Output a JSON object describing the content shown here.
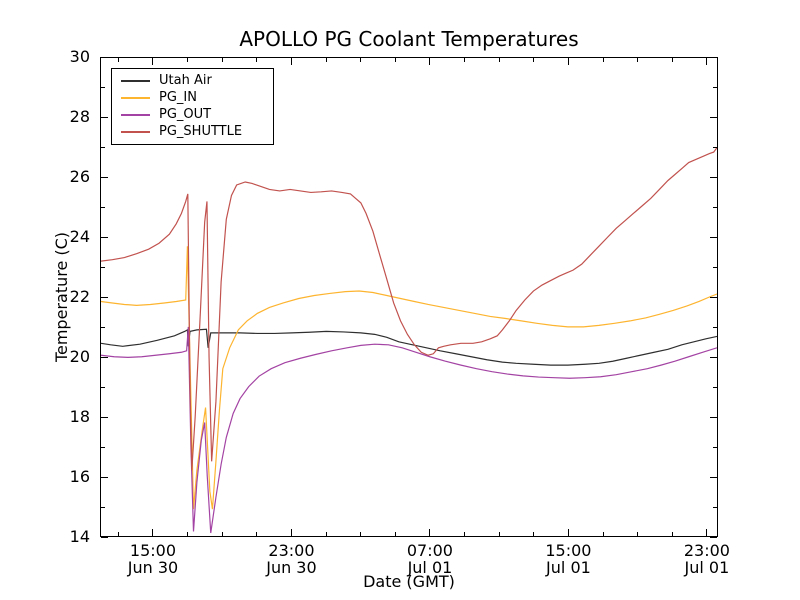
{
  "chart_data": {
    "type": "line",
    "title": "APOLLO PG Coolant Temperatures",
    "xlabel": "Date (GMT)",
    "ylabel": "Temperature (C)",
    "x_unit": "hours since Jun 30 00:00 GMT",
    "xlim": [
      11.94,
      47.64
    ],
    "ylim": [
      14,
      30
    ],
    "grid": false,
    "legend_position": "upper left",
    "y_major_ticks": [
      14,
      16,
      18,
      20,
      22,
      24,
      26,
      28,
      30
    ],
    "y_minor_tick_values": [
      15,
      17,
      19,
      21,
      23,
      25,
      27,
      29
    ],
    "x_major_ticks": [
      {
        "value": 15,
        "time": "15:00",
        "date": "Jun 30"
      },
      {
        "value": 23,
        "time": "23:00",
        "date": "Jun 30"
      },
      {
        "value": 31,
        "time": "07:00",
        "date": "Jul 01"
      },
      {
        "value": 39,
        "time": "15:00",
        "date": "Jul 01"
      },
      {
        "value": 47,
        "time": "23:00",
        "date": "Jul 01"
      }
    ],
    "x_minor_tick_values": [
      13,
      17,
      19,
      21,
      25,
      27,
      29,
      33,
      35,
      37,
      41,
      43,
      45
    ],
    "series": [
      {
        "name": "Utah Air",
        "color": "#2f2f2f",
        "points": [
          [
            11.94,
            20.45
          ],
          [
            12.5,
            20.4
          ],
          [
            13.2,
            20.35
          ],
          [
            14.2,
            20.42
          ],
          [
            15.2,
            20.55
          ],
          [
            16.2,
            20.7
          ],
          [
            16.8,
            20.85
          ],
          [
            16.95,
            20.9
          ],
          [
            17.0,
            20.35
          ],
          [
            17.1,
            20.85
          ],
          [
            17.5,
            20.9
          ],
          [
            18.05,
            20.92
          ],
          [
            18.15,
            20.3
          ],
          [
            18.3,
            20.8
          ],
          [
            19,
            20.8
          ],
          [
            20,
            20.8
          ],
          [
            21,
            20.78
          ],
          [
            22,
            20.78
          ],
          [
            23,
            20.8
          ],
          [
            24,
            20.82
          ],
          [
            25,
            20.85
          ],
          [
            26,
            20.83
          ],
          [
            27,
            20.8
          ],
          [
            27.8,
            20.75
          ],
          [
            28.5,
            20.65
          ],
          [
            29.2,
            20.5
          ],
          [
            30,
            20.4
          ],
          [
            30.8,
            20.3
          ],
          [
            31.6,
            20.2
          ],
          [
            32.5,
            20.1
          ],
          [
            33.4,
            20.0
          ],
          [
            34.3,
            19.9
          ],
          [
            35.2,
            19.82
          ],
          [
            36,
            19.78
          ],
          [
            37,
            19.75
          ],
          [
            38,
            19.72
          ],
          [
            39,
            19.72
          ],
          [
            40,
            19.75
          ],
          [
            40.8,
            19.78
          ],
          [
            41.6,
            19.85
          ],
          [
            42.4,
            19.95
          ],
          [
            43.2,
            20.05
          ],
          [
            44,
            20.15
          ],
          [
            44.8,
            20.25
          ],
          [
            45.6,
            20.4
          ],
          [
            46.3,
            20.5
          ],
          [
            47,
            20.6
          ],
          [
            47.64,
            20.68
          ]
        ]
      },
      {
        "name": "PG_IN",
        "color": "#fdb42f",
        "points": [
          [
            11.94,
            21.85
          ],
          [
            12.6,
            21.8
          ],
          [
            13.3,
            21.75
          ],
          [
            14.0,
            21.72
          ],
          [
            14.8,
            21.75
          ],
          [
            15.6,
            21.8
          ],
          [
            16.3,
            21.85
          ],
          [
            16.85,
            21.9
          ],
          [
            16.95,
            23.7
          ],
          [
            17.05,
            21.0
          ],
          [
            17.3,
            14.9
          ],
          [
            17.5,
            16.2
          ],
          [
            17.8,
            17.5
          ],
          [
            18.0,
            18.3
          ],
          [
            18.25,
            15.5
          ],
          [
            18.4,
            14.9
          ],
          [
            18.6,
            16.5
          ],
          [
            18.8,
            18.2
          ],
          [
            19.0,
            19.6
          ],
          [
            19.4,
            20.3
          ],
          [
            19.9,
            20.9
          ],
          [
            20.4,
            21.2
          ],
          [
            21.0,
            21.45
          ],
          [
            21.7,
            21.65
          ],
          [
            22.5,
            21.8
          ],
          [
            23.4,
            21.95
          ],
          [
            24.3,
            22.05
          ],
          [
            25.2,
            22.12
          ],
          [
            26.1,
            22.18
          ],
          [
            26.9,
            22.2
          ],
          [
            27.7,
            22.15
          ],
          [
            28.5,
            22.05
          ],
          [
            29.3,
            21.95
          ],
          [
            30.1,
            21.85
          ],
          [
            30.9,
            21.75
          ],
          [
            31.8,
            21.65
          ],
          [
            32.7,
            21.55
          ],
          [
            33.6,
            21.45
          ],
          [
            34.5,
            21.35
          ],
          [
            35.4,
            21.28
          ],
          [
            36.3,
            21.2
          ],
          [
            37.2,
            21.12
          ],
          [
            38.1,
            21.05
          ],
          [
            39.0,
            21.0
          ],
          [
            39.9,
            21.0
          ],
          [
            40.8,
            21.05
          ],
          [
            41.7,
            21.12
          ],
          [
            42.6,
            21.2
          ],
          [
            43.5,
            21.3
          ],
          [
            44.3,
            21.42
          ],
          [
            45.1,
            21.55
          ],
          [
            45.9,
            21.7
          ],
          [
            46.6,
            21.85
          ],
          [
            47.2,
            22.0
          ],
          [
            47.64,
            22.1
          ]
        ]
      },
      {
        "name": "PG_OUT",
        "color": "#a343a3",
        "points": [
          [
            11.94,
            20.05
          ],
          [
            12.7,
            20.0
          ],
          [
            13.5,
            19.98
          ],
          [
            14.3,
            20.0
          ],
          [
            15.1,
            20.05
          ],
          [
            15.9,
            20.1
          ],
          [
            16.6,
            20.15
          ],
          [
            16.9,
            20.2
          ],
          [
            17.0,
            21.0
          ],
          [
            17.15,
            17.0
          ],
          [
            17.3,
            14.15
          ],
          [
            17.5,
            15.8
          ],
          [
            17.75,
            17.2
          ],
          [
            17.95,
            17.8
          ],
          [
            18.1,
            16.0
          ],
          [
            18.3,
            14.1
          ],
          [
            18.6,
            15.3
          ],
          [
            18.9,
            16.4
          ],
          [
            19.2,
            17.3
          ],
          [
            19.6,
            18.1
          ],
          [
            20.0,
            18.6
          ],
          [
            20.5,
            19.0
          ],
          [
            21.1,
            19.35
          ],
          [
            21.8,
            19.6
          ],
          [
            22.6,
            19.8
          ],
          [
            23.5,
            19.95
          ],
          [
            24.4,
            20.08
          ],
          [
            25.3,
            20.2
          ],
          [
            26.2,
            20.3
          ],
          [
            27.0,
            20.38
          ],
          [
            27.8,
            20.42
          ],
          [
            28.6,
            20.4
          ],
          [
            29.4,
            20.3
          ],
          [
            30.2,
            20.15
          ],
          [
            31.0,
            20.0
          ],
          [
            31.9,
            19.85
          ],
          [
            32.8,
            19.72
          ],
          [
            33.7,
            19.6
          ],
          [
            34.6,
            19.5
          ],
          [
            35.5,
            19.42
          ],
          [
            36.4,
            19.36
          ],
          [
            37.3,
            19.32
          ],
          [
            38.2,
            19.3
          ],
          [
            39.1,
            19.28
          ],
          [
            40.0,
            19.3
          ],
          [
            40.9,
            19.33
          ],
          [
            41.8,
            19.4
          ],
          [
            42.7,
            19.5
          ],
          [
            43.6,
            19.6
          ],
          [
            44.4,
            19.72
          ],
          [
            45.2,
            19.85
          ],
          [
            46.0,
            20.0
          ],
          [
            46.8,
            20.15
          ],
          [
            47.64,
            20.3
          ]
        ]
      },
      {
        "name": "PG_SHUTTLE",
        "color": "#c1524e",
        "points": [
          [
            11.94,
            23.2
          ],
          [
            12.6,
            23.25
          ],
          [
            13.3,
            23.32
          ],
          [
            14.0,
            23.45
          ],
          [
            14.7,
            23.6
          ],
          [
            15.3,
            23.8
          ],
          [
            15.9,
            24.1
          ],
          [
            16.3,
            24.45
          ],
          [
            16.6,
            24.8
          ],
          [
            16.85,
            25.2
          ],
          [
            16.97,
            25.45
          ],
          [
            17.1,
            19.0
          ],
          [
            17.2,
            16.2
          ],
          [
            17.4,
            18.0
          ],
          [
            17.7,
            21.5
          ],
          [
            17.95,
            24.5
          ],
          [
            18.08,
            25.2
          ],
          [
            18.2,
            20.0
          ],
          [
            18.35,
            16.5
          ],
          [
            18.6,
            18.5
          ],
          [
            18.9,
            22.5
          ],
          [
            19.2,
            24.6
          ],
          [
            19.5,
            25.4
          ],
          [
            19.8,
            25.75
          ],
          [
            20.3,
            25.85
          ],
          [
            20.7,
            25.8
          ],
          [
            21.2,
            25.7
          ],
          [
            21.7,
            25.6
          ],
          [
            22.3,
            25.55
          ],
          [
            22.9,
            25.6
          ],
          [
            23.5,
            25.55
          ],
          [
            24.1,
            25.5
          ],
          [
            24.7,
            25.52
          ],
          [
            25.3,
            25.55
          ],
          [
            25.9,
            25.5
          ],
          [
            26.4,
            25.45
          ],
          [
            26.7,
            25.3
          ],
          [
            27.0,
            25.15
          ],
          [
            27.3,
            24.8
          ],
          [
            27.7,
            24.2
          ],
          [
            28.1,
            23.4
          ],
          [
            28.5,
            22.6
          ],
          [
            28.9,
            21.8
          ],
          [
            29.3,
            21.2
          ],
          [
            29.7,
            20.75
          ],
          [
            30.1,
            20.4
          ],
          [
            30.5,
            20.15
          ],
          [
            30.9,
            20.05
          ],
          [
            31.2,
            20.1
          ],
          [
            31.5,
            20.3
          ],
          [
            31.8,
            20.35
          ],
          [
            32.2,
            20.4
          ],
          [
            32.8,
            20.45
          ],
          [
            33.5,
            20.45
          ],
          [
            34.0,
            20.5
          ],
          [
            34.5,
            20.6
          ],
          [
            34.9,
            20.7
          ],
          [
            35.2,
            20.9
          ],
          [
            35.6,
            21.2
          ],
          [
            36.0,
            21.55
          ],
          [
            36.5,
            21.9
          ],
          [
            37.0,
            22.2
          ],
          [
            37.5,
            22.4
          ],
          [
            38.0,
            22.55
          ],
          [
            38.5,
            22.7
          ],
          [
            38.9,
            22.8
          ],
          [
            39.3,
            22.9
          ],
          [
            39.8,
            23.1
          ],
          [
            40.3,
            23.4
          ],
          [
            40.8,
            23.7
          ],
          [
            41.3,
            24.0
          ],
          [
            41.8,
            24.3
          ],
          [
            42.3,
            24.55
          ],
          [
            42.8,
            24.8
          ],
          [
            43.3,
            25.05
          ],
          [
            43.8,
            25.3
          ],
          [
            44.3,
            25.6
          ],
          [
            44.8,
            25.9
          ],
          [
            45.2,
            26.1
          ],
          [
            45.6,
            26.3
          ],
          [
            46.0,
            26.5
          ],
          [
            46.4,
            26.6
          ],
          [
            46.8,
            26.7
          ],
          [
            47.2,
            26.8
          ],
          [
            47.45,
            26.85
          ],
          [
            47.64,
            27.0
          ]
        ]
      }
    ]
  }
}
